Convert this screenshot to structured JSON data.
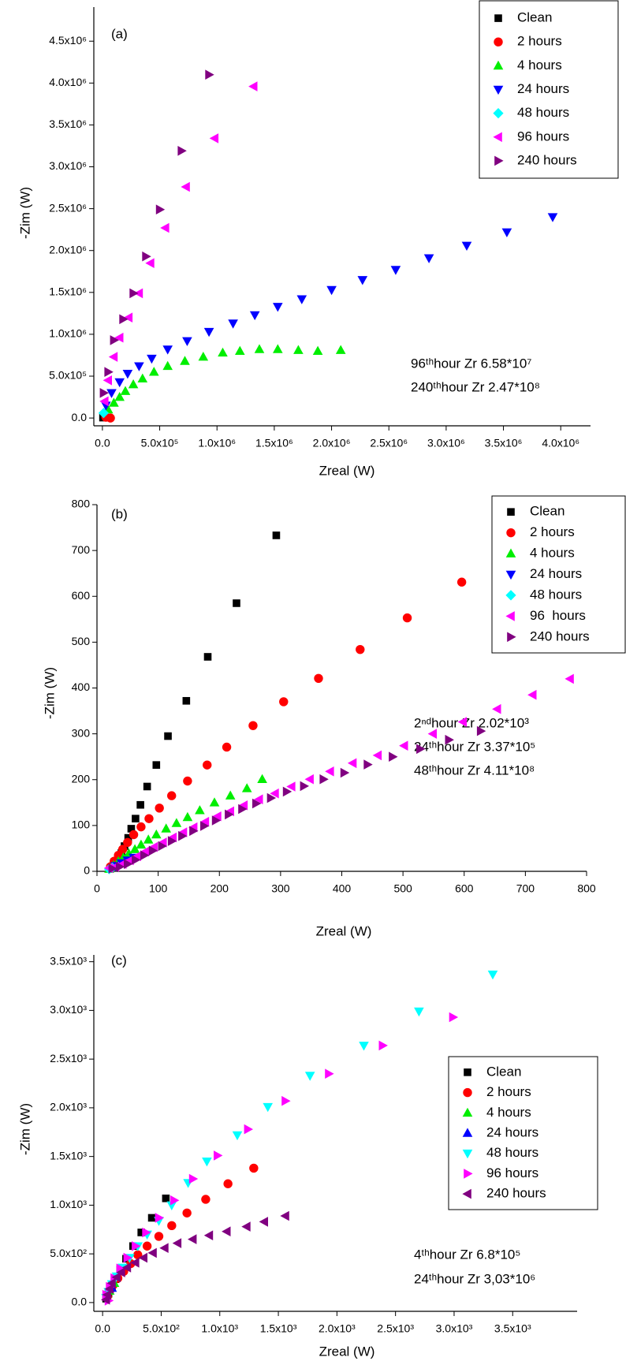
{
  "chart_data": [
    {
      "type": "scatter",
      "panel_label": "(a)",
      "x_label": "Zreal (W)",
      "y_label": "-Zim (W)",
      "xlim": [
        -75000,
        4260000
      ],
      "ylim": [
        -93000,
        4907000
      ],
      "xticks": [
        {
          "value": 0,
          "label": "0.0"
        },
        {
          "value": 500000,
          "label": "5.0x10⁵"
        },
        {
          "value": 1000000,
          "label": "1.0x10⁶"
        },
        {
          "value": 1500000,
          "label": "1.5x10⁶"
        },
        {
          "value": 2000000,
          "label": "2.0x10⁶"
        },
        {
          "value": 2500000,
          "label": "2.5x10⁶"
        },
        {
          "value": 3000000,
          "label": "3.0x10⁶"
        },
        {
          "value": 3500000,
          "label": "3.5x10⁶"
        },
        {
          "value": 4000000,
          "label": "4.0x10⁶"
        }
      ],
      "yticks": [
        {
          "value": 0,
          "label": "0.0"
        },
        {
          "value": 500000,
          "label": "5.0x10⁵"
        },
        {
          "value": 1000000,
          "label": "1.0x10⁶"
        },
        {
          "value": 1500000,
          "label": "1.5x10⁶"
        },
        {
          "value": 2000000,
          "label": "2.0x10⁶"
        },
        {
          "value": 2500000,
          "label": "2.5x10⁶"
        },
        {
          "value": 3000000,
          "label": "3.0x10⁶"
        },
        {
          "value": 3500000,
          "label": "3.5x10⁶"
        },
        {
          "value": 4000000,
          "label": "4.0x10⁶"
        },
        {
          "value": 4500000,
          "label": "4.5x10⁶"
        }
      ],
      "annotations": [
        "96ᵗʰhour Zr 6.58*10⁷",
        "240ᵗʰhour Zr 2.47*10⁸"
      ],
      "legend": "upper right",
      "series": [
        {
          "name": "Clean",
          "color": "#000000",
          "marker": "square",
          "x": [
            5000,
            10000
          ],
          "values": [
            5000,
            12000
          ]
        },
        {
          "name": "2 hours",
          "color": "#ff0000",
          "marker": "circle",
          "x": [
            70000,
            30000
          ],
          "values": [
            0,
            10000
          ]
        },
        {
          "name": "4 hours",
          "color": "#00ee00",
          "marker": "triangle-up",
          "x": [
            50000,
            100000,
            150000,
            200000,
            270000,
            350000,
            450000,
            570000,
            720000,
            880000,
            1050000,
            1200000,
            1370000,
            1530000,
            1710000,
            1880000,
            2080000
          ],
          "values": [
            100000,
            180000,
            250000,
            320000,
            400000,
            470000,
            550000,
            620000,
            680000,
            730000,
            780000,
            800000,
            820000,
            820000,
            810000,
            800000,
            810000
          ]
        },
        {
          "name": "24 hours",
          "color": "#0000ff",
          "marker": "triangle-down",
          "x": [
            30000,
            80000,
            150000,
            220000,
            320000,
            430000,
            570000,
            740000,
            930000,
            1140000,
            1330000,
            1530000,
            1740000,
            2000000,
            2270000,
            2560000,
            2850000,
            3180000,
            3530000,
            3930000
          ],
          "values": [
            150000,
            300000,
            430000,
            530000,
            620000,
            710000,
            820000,
            920000,
            1030000,
            1130000,
            1230000,
            1330000,
            1420000,
            1530000,
            1650000,
            1770000,
            1910000,
            2060000,
            2220000,
            2400000
          ]
        },
        {
          "name": "48 hours",
          "color": "#00ffff",
          "marker": "diamond",
          "x": [
            10000
          ],
          "values": [
            60000
          ]
        },
        {
          "name": "96 hours",
          "color": "#ff00ff",
          "marker": "triangle-left",
          "x": [
            20000,
            50000,
            100000,
            150000,
            230000,
            320000,
            420000,
            550000,
            730000,
            980000,
            1320000
          ],
          "values": [
            200000,
            450000,
            730000,
            960000,
            1200000,
            1490000,
            1850000,
            2270000,
            2760000,
            3340000,
            3960000
          ]
        },
        {
          "name": "240 hours",
          "color": "#800080",
          "marker": "triangle-right",
          "x": [
            10000,
            50000,
            100000,
            180000,
            270000,
            380000,
            500000,
            690000,
            930000
          ],
          "values": [
            300000,
            550000,
            930000,
            1180000,
            1490000,
            1930000,
            2490000,
            3190000,
            4100000
          ]
        }
      ]
    },
    {
      "type": "scatter",
      "panel_label": "(b)",
      "x_label": "Zreal (W)",
      "y_label": "-Zim (W)",
      "xlim": [
        0,
        800
      ],
      "ylim": [
        0,
        800
      ],
      "xticks": [
        0,
        100,
        200,
        300,
        400,
        500,
        600,
        700,
        800
      ],
      "yticks": [
        0,
        100,
        200,
        300,
        400,
        500,
        600,
        700,
        800
      ],
      "annotations": [
        "2ⁿᵈhour Zr 2.02*10³",
        "24ᵗʰhour Zr 3.37*10⁵",
        "48ᵗʰhour Zr 4.11*10⁸"
      ],
      "legend": "upper right",
      "series": [
        {
          "name": "Clean",
          "color": "#000000",
          "marker": "square",
          "x": [
            293,
            228,
            181,
            146,
            116,
            97,
            82,
            71,
            63,
            56,
            51,
            45,
            40,
            35,
            30,
            25
          ],
          "values": [
            733,
            585,
            468,
            372,
            295,
            232,
            185,
            145,
            115,
            93,
            73,
            55,
            40,
            30,
            20,
            10
          ]
        },
        {
          "name": "2 hours",
          "color": "#ff0000",
          "marker": "circle",
          "x": [
            596,
            507,
            430,
            362,
            305,
            255,
            212,
            180,
            148,
            122,
            102,
            85,
            72,
            60,
            50,
            42,
            35,
            28,
            22
          ],
          "values": [
            631,
            553,
            484,
            421,
            370,
            318,
            271,
            232,
            197,
            165,
            138,
            115,
            97,
            80,
            63,
            48,
            35,
            22,
            10
          ]
        },
        {
          "name": "4 hours",
          "color": "#00ee00",
          "marker": "triangle-up",
          "x": [
            270,
            245,
            218,
            192,
            168,
            148,
            130,
            113,
            97,
            84,
            72,
            62,
            52,
            43,
            35,
            27,
            20
          ],
          "values": [
            201,
            181,
            165,
            150,
            133,
            118,
            105,
            93,
            80,
            69,
            58,
            48,
            39,
            30,
            22,
            13,
            5
          ]
        },
        {
          "name": "24 hours",
          "color": "#0000ff",
          "marker": "triangle-down",
          "x": [
            30,
            40,
            50,
            60
          ],
          "values": [
            12,
            18,
            24,
            30
          ]
        },
        {
          "name": "48 hours",
          "color": "#00ffff",
          "marker": "diamond",
          "x": [
            20,
            25
          ],
          "values": [
            5,
            8
          ]
        },
        {
          "name": "96  hours",
          "color": "#ff00ff",
          "marker": "triangle-left",
          "x": [
            773,
            712,
            654,
            598,
            549,
            502,
            459,
            418,
            381,
            348,
            318,
            291,
            265,
            240,
            218,
            197,
            177,
            158,
            141,
            124,
            108,
            93,
            79,
            66,
            54,
            42,
            30,
            20
          ],
          "values": [
            420,
            385,
            354,
            326,
            300,
            274,
            253,
            236,
            218,
            201,
            185,
            170,
            157,
            144,
            131,
            120,
            108,
            96,
            85,
            74,
            63,
            53,
            43,
            33,
            24,
            16,
            10,
            7
          ]
        },
        {
          "name": "240 hours",
          "color": "#800080",
          "marker": "triangle-right",
          "x": [
            627,
            575,
            528,
            483,
            442,
            404,
            370,
            338,
            310,
            284,
            260,
            237,
            215,
            194,
            175,
            157,
            139,
            122,
            106,
            91,
            77,
            63,
            50,
            37,
            25
          ],
          "values": [
            306,
            287,
            267,
            250,
            233,
            215,
            201,
            186,
            174,
            160,
            148,
            136,
            124,
            111,
            99,
            88,
            77,
            66,
            55,
            45,
            35,
            25,
            16,
            10,
            6
          ]
        }
      ]
    },
    {
      "type": "scatter",
      "panel_label": "(c)",
      "x_label": "Zreal (W)",
      "y_label": "-Zim (W)",
      "xlim": [
        -75,
        4050
      ],
      "ylim": [
        -90,
        3570
      ],
      "xticks": [
        {
          "value": 0,
          "label": "0.0"
        },
        {
          "value": 500,
          "label": "5.0x10²"
        },
        {
          "value": 1000,
          "label": "1.0x10³"
        },
        {
          "value": 1500,
          "label": "1.5x10³"
        },
        {
          "value": 2000,
          "label": "2.0x10³"
        },
        {
          "value": 2500,
          "label": "2.5x10³"
        },
        {
          "value": 3000,
          "label": "3.0x10³"
        },
        {
          "value": 3500,
          "label": "3.5x10³"
        }
      ],
      "yticks": [
        {
          "value": 0,
          "label": "0.0"
        },
        {
          "value": 500,
          "label": "5.0x10²"
        },
        {
          "value": 1000,
          "label": "1.0x10³"
        },
        {
          "value": 1500,
          "label": "1.5x10³"
        },
        {
          "value": 2000,
          "label": "2.0x10³"
        },
        {
          "value": 2500,
          "label": "2.5x10³"
        },
        {
          "value": 3000,
          "label": "3.0x10³"
        },
        {
          "value": 3500,
          "label": "3.5x10³"
        }
      ],
      "annotations": [
        "4ᵗʰhour Zr 6.8*10⁵",
        "24ᵗʰhour Zr 3,03*10⁶"
      ],
      "legend": "center right",
      "series": [
        {
          "name": "Clean",
          "color": "#000000",
          "marker": "square",
          "x": [
            540,
            420,
            330,
            260,
            200,
            150,
            110,
            80,
            50,
            30
          ],
          "values": [
            1070,
            870,
            720,
            580,
            450,
            340,
            240,
            160,
            90,
            40
          ]
        },
        {
          "name": "2 hours",
          "color": "#ff0000",
          "marker": "circle",
          "x": [
            1290,
            1070,
            880,
            720,
            590,
            480,
            380,
            300,
            240,
            180,
            130,
            90,
            60,
            40
          ],
          "values": [
            1380,
            1220,
            1060,
            920,
            790,
            680,
            580,
            490,
            400,
            320,
            250,
            180,
            120,
            60
          ]
        },
        {
          "name": "4 hours",
          "color": "#00ee00",
          "marker": "triangle-up",
          "x": [
            100,
            60
          ],
          "values": [
            200,
            120
          ]
        },
        {
          "name": "24 hours",
          "color": "#0000ff",
          "marker": "triangle-up",
          "x": [
            80
          ],
          "values": [
            150
          ]
        },
        {
          "name": "48 hours",
          "color": "#00ffff",
          "marker": "triangle-down",
          "x": [
            3330,
            2700,
            2230,
            1770,
            1410,
            1150,
            890,
            730,
            590,
            480,
            380,
            300,
            230,
            170,
            120,
            80,
            50,
            30
          ],
          "values": [
            3370,
            2990,
            2640,
            2330,
            2010,
            1720,
            1450,
            1230,
            1000,
            840,
            700,
            580,
            460,
            360,
            270,
            190,
            110,
            50
          ]
        },
        {
          "name": "96 hours",
          "color": "#ff00ff",
          "marker": "triangle-right",
          "x": [
            2990,
            2390,
            1930,
            1560,
            1240,
            980,
            770,
            610,
            480,
            370,
            280,
            210,
            150,
            100,
            60,
            30,
            50
          ],
          "values": [
            2930,
            2640,
            2350,
            2070,
            1780,
            1510,
            1270,
            1050,
            870,
            720,
            580,
            460,
            350,
            250,
            160,
            80,
            20
          ]
        },
        {
          "name": "240 hours",
          "color": "#800080",
          "marker": "triangle-left",
          "x": [
            1560,
            1380,
            1230,
            1060,
            910,
            770,
            640,
            530,
            430,
            350,
            280,
            210,
            160,
            120,
            80,
            60,
            40,
            30
          ],
          "values": [
            890,
            830,
            780,
            730,
            690,
            650,
            610,
            560,
            510,
            460,
            410,
            360,
            310,
            260,
            200,
            140,
            80,
            30
          ]
        }
      ]
    }
  ]
}
